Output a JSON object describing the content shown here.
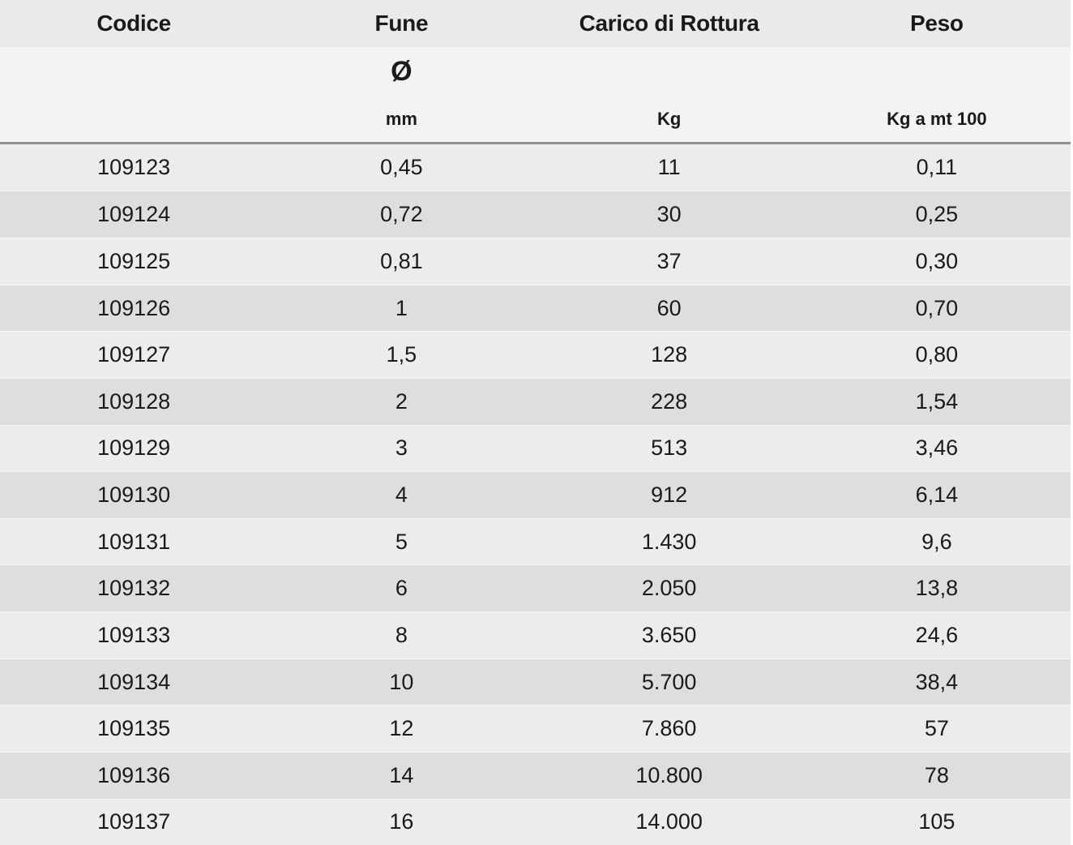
{
  "chart_data": {
    "type": "table",
    "columns": [
      {
        "header": "Codice",
        "symbol": "",
        "unit": ""
      },
      {
        "header": "Fune",
        "symbol": "Ø",
        "unit": "mm"
      },
      {
        "header": "Carico di Rottura",
        "symbol": "",
        "unit": "Kg"
      },
      {
        "header": "Peso",
        "symbol": "",
        "unit": "Kg a mt 100"
      }
    ],
    "rows": [
      [
        "109123",
        "0,45",
        "11",
        "0,11"
      ],
      [
        "109124",
        "0,72",
        "30",
        "0,25"
      ],
      [
        "109125",
        "0,81",
        "37",
        "0,30"
      ],
      [
        "109126",
        "1",
        "60",
        "0,70"
      ],
      [
        "109127",
        "1,5",
        "128",
        "0,80"
      ],
      [
        "109128",
        "2",
        "228",
        "1,54"
      ],
      [
        "109129",
        "3",
        "513",
        "3,46"
      ],
      [
        "109130",
        "4",
        "912",
        "6,14"
      ],
      [
        "109131",
        "5",
        "1.430",
        "9,6"
      ],
      [
        "109132",
        "6",
        "2.050",
        "13,8"
      ],
      [
        "109133",
        "8",
        "3.650",
        "24,6"
      ],
      [
        "109134",
        "10",
        "5.700",
        "38,4"
      ],
      [
        "109135",
        "12",
        "7.860",
        "57"
      ],
      [
        "109136",
        "14",
        "10.800",
        "78"
      ],
      [
        "109137",
        "16",
        "14.000",
        "105"
      ]
    ]
  },
  "colors": {
    "header_band": "#eaeaea",
    "subheader_band": "#f3f3f3",
    "row_light": "#ececec",
    "row_dark": "#dedede",
    "separator": "#8f8f8f",
    "text": "#1a1a1a"
  }
}
